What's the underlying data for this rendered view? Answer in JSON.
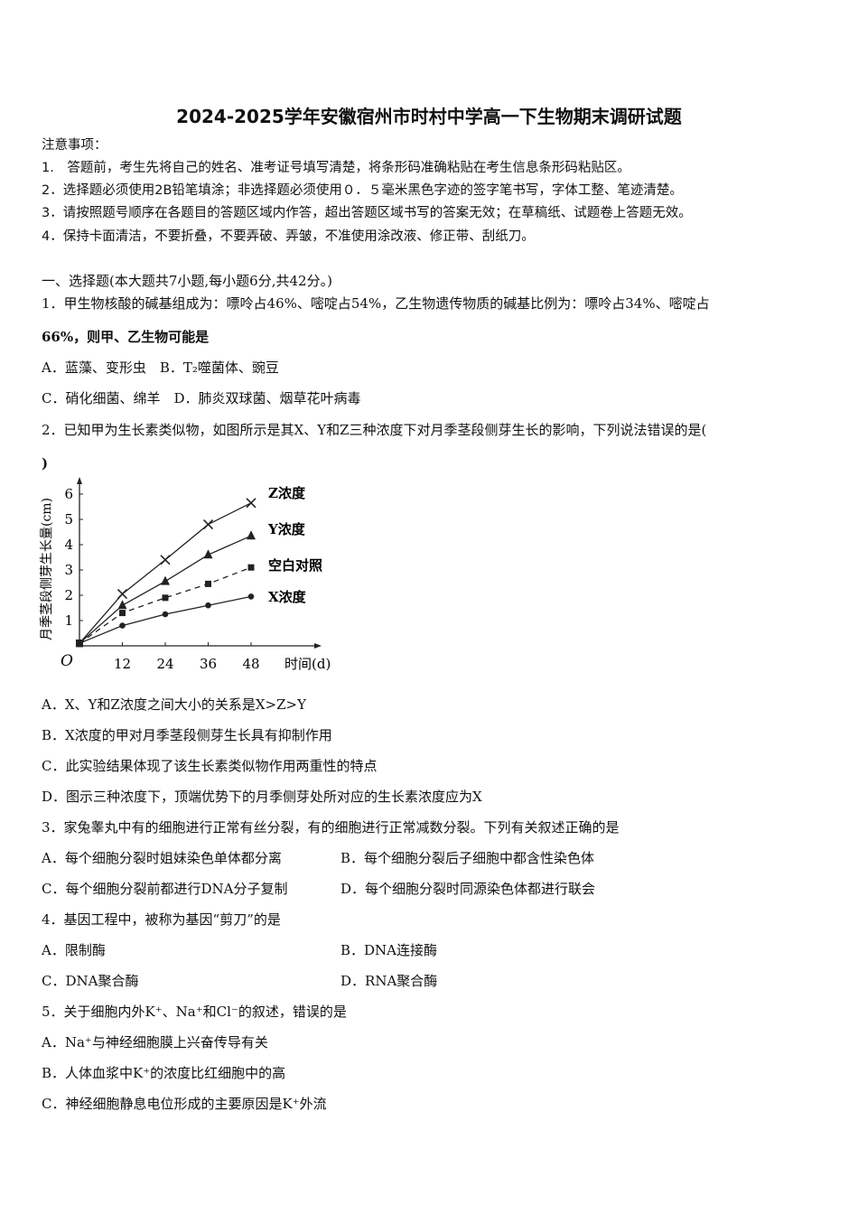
{
  "title": "2024-2025学年安徽宿州市时村中学高一下生物期末调研试题",
  "notice": {
    "heading": "注意事项：",
    "items": [
      "1.　答题前，考生先将自己的姓名、准考证号填写清楚，将条形码准确粘贴在考生信息条形码粘贴区。",
      "2．选择题必须使用2B铅笔填涂；非选择题必须使用０．５毫米黑色字迹的签字笔书写，字体工整、笔迹清楚。",
      "3．请按照题号顺序在各题目的答题区域内作答，超出答题区域书写的答案无效；在草稿纸、试题卷上答题无效。",
      "4．保持卡面清洁，不要折叠，不要弄破、弄皱，不准使用涂改液、修正带、刮纸刀。"
    ]
  },
  "section": "一、选择题(本大题共7小题,每小题6分,共42分。)",
  "questions": [
    {
      "stem": "1．甲生物核酸的碱基组成为：嘌呤占46%、嘧啶占54%，乙生物遗传物质的碱基比例为：嘌呤占34%、嘧啶占",
      "stem2": "66%，则甲、乙生物可能是",
      "options": [
        "A．蓝藻、变形虫　B．T₂噬菌体、豌豆",
        "C．硝化细菌、绵羊　D．肺炎双球菌、烟草花叶病毒"
      ]
    },
    {
      "stem": "2．已知甲为生长素类似物，如图所示是其X、Y和Z三种浓度下对月季茎段侧芽生长的影响，下列说法错误的是(",
      "stem2": ")",
      "options": [
        "A．X、Y和Z浓度之间大小的关系是X>Z>Y",
        "B．X浓度的甲对月季茎段侧芽生长具有抑制作用",
        "C．此实验结果体现了该生长素类似物作用两重性的特点",
        "D．图示三种浓度下，顶端优势下的月季侧芽处所对应的生长素浓度应为X"
      ]
    },
    {
      "stem": "3．家兔睾丸中有的细胞进行正常有丝分裂，有的细胞进行正常减数分裂。下列有关叙述正确的是",
      "options": [
        "A．每个细胞分裂时姐妹染色单体都分离",
        "B．每个细胞分裂后子细胞中都含性染色体",
        "C．每个细胞分裂前都进行DNA分子复制",
        "D．每个细胞分裂时同源染色体都进行联会"
      ]
    },
    {
      "stem": "4．基因工程中，被称为基因“剪刀”的是",
      "options": [
        "A．限制酶",
        "B．DNA连接酶",
        "C．DNA聚合酶",
        "D．RNA聚合酶"
      ]
    },
    {
      "stem": "5．关于细胞内外K⁺、Na⁺和Cl⁻的叙述，错误的是",
      "options": [
        "A．Na⁺与神经细胞膜上兴奋传导有关",
        "B．人体血浆中K⁺的浓度比红细胞中的高",
        "C．神经细胞静息电位形成的主要原因是K⁺外流"
      ]
    }
  ],
  "chart_data": {
    "type": "line",
    "xlabel": "时间(d)",
    "ylabel": "月季茎段侧芽生长量(cm)",
    "origin_label": "O",
    "x": [
      0,
      12,
      24,
      36,
      48
    ],
    "xticks": [
      "12",
      "24",
      "36",
      "48"
    ],
    "yticks": [
      "1",
      "2",
      "3",
      "4",
      "5",
      "6"
    ],
    "xlim": [
      0,
      60
    ],
    "ylim": [
      0,
      6.5
    ],
    "grid": false,
    "series": [
      {
        "name": "Z浓度",
        "marker": "x",
        "dashed": false,
        "values": [
          0.1,
          2.05,
          3.4,
          4.8,
          5.65
        ]
      },
      {
        "name": "Y浓度",
        "marker": "triangle",
        "dashed": false,
        "values": [
          0.1,
          1.6,
          2.55,
          3.6,
          4.35
        ]
      },
      {
        "name": "空白对照",
        "marker": "square",
        "dashed": true,
        "values": [
          0.1,
          1.3,
          1.9,
          2.45,
          3.1
        ]
      },
      {
        "name": "X浓度",
        "marker": "circle",
        "dashed": false,
        "values": [
          0.1,
          0.8,
          1.25,
          1.6,
          1.95
        ]
      }
    ]
  }
}
